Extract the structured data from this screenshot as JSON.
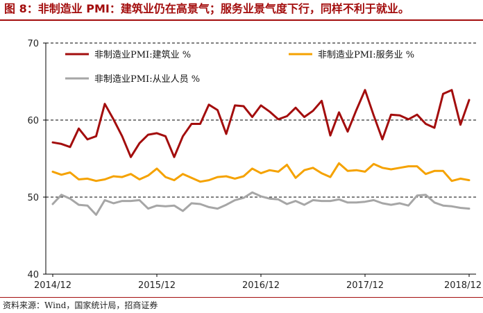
{
  "figure": {
    "title": "图 8：非制造业 PMI：建筑业仍在高景气；服务业景气度下行，同样不利于就业。",
    "source": "资料来源：Wind，国家统计局，招商证券"
  },
  "chart_data": {
    "type": "line",
    "title": "",
    "xlabel": "",
    "ylabel": "",
    "ylim": [
      40,
      70
    ],
    "yticks": [
      40,
      50,
      60,
      70
    ],
    "x_tick_labels": [
      "2014/12",
      "2015/12",
      "2016/12",
      "2017/12",
      "2018/12"
    ],
    "x_start": "2014/12",
    "x_end": "2018/12",
    "grid": "horizontal dashed",
    "legend_position": "top",
    "series": [
      {
        "name": "非制造业PMI:建筑业 %",
        "color": "#a30d0d",
        "values": [
          57.1,
          56.9,
          56.5,
          58.9,
          57.5,
          57.9,
          62.1,
          60.1,
          57.9,
          55.2,
          57.0,
          58.1,
          58.3,
          57.9,
          55.2,
          57.9,
          59.5,
          59.5,
          62.0,
          61.3,
          58.2,
          61.9,
          61.8,
          60.4,
          61.9,
          61.1,
          60.1,
          60.5,
          61.6,
          60.4,
          61.2,
          62.5,
          58.0,
          61.0,
          58.5,
          61.3,
          63.9,
          60.6,
          57.5,
          60.7,
          60.6,
          60.1,
          60.7,
          59.5,
          59.0,
          63.4,
          63.9,
          59.4,
          62.6
        ]
      },
      {
        "name": "非制造业PMI:服务业 %",
        "color": "#f5a200",
        "values": [
          53.3,
          52.9,
          53.2,
          52.3,
          52.4,
          52.1,
          52.3,
          52.7,
          52.6,
          53.0,
          52.3,
          52.8,
          53.7,
          52.6,
          52.2,
          53.0,
          52.5,
          52.0,
          52.2,
          52.6,
          52.7,
          52.4,
          52.7,
          53.7,
          53.1,
          53.5,
          53.3,
          54.2,
          52.5,
          53.5,
          53.8,
          53.1,
          52.6,
          54.4,
          53.4,
          53.5,
          53.3,
          54.3,
          53.8,
          53.6,
          53.8,
          54.0,
          54.0,
          53.0,
          53.4,
          53.4,
          52.1,
          52.4,
          52.2
        ]
      },
      {
        "name": "非制造业PMI:从业人员 %",
        "color": "#a6a6a6",
        "values": [
          49.1,
          50.3,
          49.8,
          49.0,
          48.9,
          47.7,
          49.6,
          49.2,
          49.5,
          49.5,
          49.6,
          48.5,
          48.9,
          48.8,
          48.9,
          48.2,
          49.2,
          49.1,
          48.7,
          48.5,
          49.0,
          49.6,
          49.9,
          50.6,
          50.1,
          49.8,
          49.7,
          49.1,
          49.5,
          49.0,
          49.6,
          49.5,
          49.5,
          49.7,
          49.3,
          49.3,
          49.4,
          49.6,
          49.2,
          49.0,
          49.2,
          48.9,
          50.2,
          50.3,
          49.3,
          48.9,
          48.8,
          48.6,
          48.5
        ]
      }
    ]
  }
}
